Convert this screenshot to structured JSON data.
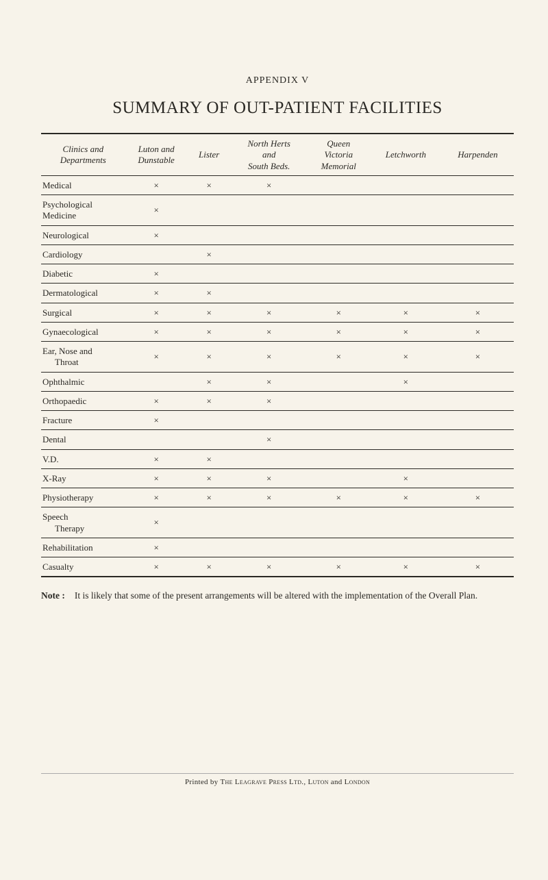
{
  "appendix": "APPENDIX  V",
  "title": "SUMMARY OF OUT-PATIENT FACILITIES",
  "mark_glyph": "×",
  "columns": [
    "Clinics and Departments",
    "Luton and Dunstable",
    "Lister",
    "North Herts and South Beds.",
    "Queen Victoria Memorial",
    "Letchworth",
    "Harpenden"
  ],
  "rows": [
    {
      "label": "Medical",
      "marks": [
        1,
        1,
        1,
        0,
        0,
        0
      ]
    },
    {
      "label": "Psychological Medicine",
      "two_line": true,
      "line1": "Psychological",
      "line2": "Medicine",
      "marks": [
        1,
        0,
        0,
        0,
        0,
        0
      ]
    },
    {
      "label": "Neurological",
      "marks": [
        1,
        0,
        0,
        0,
        0,
        0
      ]
    },
    {
      "label": "Cardiology",
      "marks": [
        0,
        1,
        0,
        0,
        0,
        0
      ]
    },
    {
      "label": "Diabetic",
      "marks": [
        1,
        0,
        0,
        0,
        0,
        0
      ]
    },
    {
      "label": "Dermatological",
      "marks": [
        1,
        1,
        0,
        0,
        0,
        0
      ]
    },
    {
      "label": "Surgical",
      "marks": [
        1,
        1,
        1,
        1,
        1,
        1
      ]
    },
    {
      "label": "Gynaecological",
      "marks": [
        1,
        1,
        1,
        1,
        1,
        1
      ]
    },
    {
      "label": "Ear, Nose and Throat",
      "two_line": true,
      "line1": "Ear, Nose and",
      "line2_indent": "Throat",
      "marks": [
        1,
        1,
        1,
        1,
        1,
        1
      ]
    },
    {
      "label": "Ophthalmic",
      "marks": [
        0,
        1,
        1,
        0,
        1,
        0
      ]
    },
    {
      "label": "Orthopaedic",
      "marks": [
        1,
        1,
        1,
        0,
        0,
        0
      ]
    },
    {
      "label": "Fracture",
      "marks": [
        1,
        0,
        0,
        0,
        0,
        0
      ]
    },
    {
      "label": "Dental",
      "marks": [
        0,
        0,
        1,
        0,
        0,
        0
      ]
    },
    {
      "label": "V.D.",
      "marks": [
        1,
        1,
        0,
        0,
        0,
        0
      ]
    },
    {
      "label": "X-Ray",
      "marks": [
        1,
        1,
        1,
        0,
        1,
        0
      ]
    },
    {
      "label": "Physiotherapy",
      "marks": [
        1,
        1,
        1,
        1,
        1,
        1
      ]
    },
    {
      "label": "Speech Therapy",
      "two_line": true,
      "line1": "Speech",
      "line2_indent": "Therapy",
      "marks": [
        1,
        0,
        0,
        0,
        0,
        0
      ]
    },
    {
      "label": "Rehabilitation",
      "marks": [
        1,
        0,
        0,
        0,
        0,
        0
      ]
    },
    {
      "label": "Casualty",
      "marks": [
        1,
        1,
        1,
        1,
        1,
        1
      ]
    }
  ],
  "note_label": "Note :",
  "note_text": "It is likely that some of the present arrangements will be altered with the implementation of the Overall Plan.",
  "footer_prefix": "Printed by ",
  "footer_company": "The Leagrave Press Ltd., Luton",
  "footer_and": " and ",
  "footer_city": "London"
}
